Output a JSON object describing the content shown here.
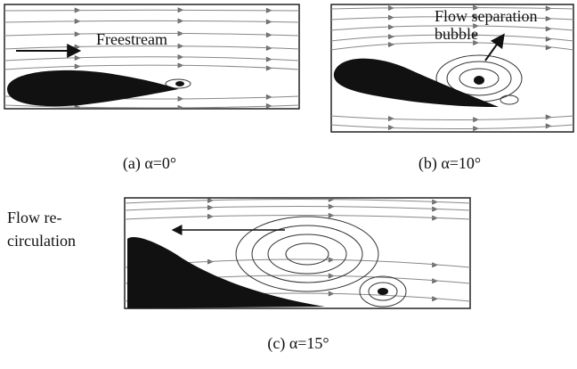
{
  "panels": [
    {
      "caption": "(a) α=0°",
      "annotation": [
        "Freestream"
      ]
    },
    {
      "caption": "(b) α=10°",
      "annotation": [
        "Flow separation",
        "bubble"
      ]
    },
    {
      "caption": "(c) α=15°",
      "annotation": [
        "Flow re-",
        "circulation"
      ]
    }
  ]
}
